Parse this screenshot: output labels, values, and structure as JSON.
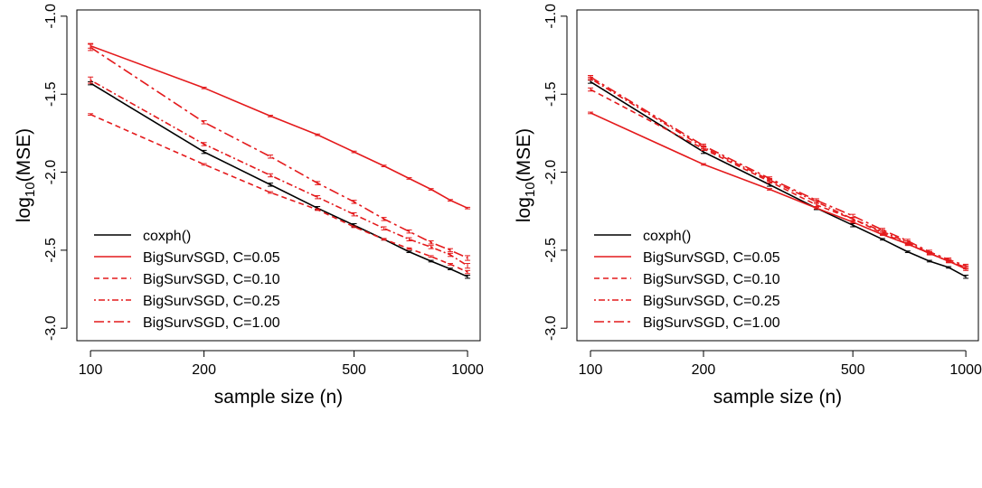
{
  "figure": {
    "background": "#ffffff"
  },
  "chart_data": [
    {
      "type": "line",
      "xlabel": "sample size (n)",
      "ylabel_base": "log",
      "ylabel_sub": "10",
      "ylabel_rest": "(MSE)",
      "x_scale": "log",
      "xlim": [
        92,
        1080
      ],
      "ylim": [
        -3.08,
        -0.96
      ],
      "x_ticks": [
        100,
        200,
        500,
        1000
      ],
      "x_tick_labels": [
        "100",
        "200",
        "500",
        "1000"
      ],
      "y_ticks": [
        -3.0,
        -2.5,
        -2.0,
        -1.5,
        -1.0
      ],
      "y_tick_labels": [
        "-3.0",
        "-2.5",
        "-2.0",
        "-1.5",
        "-1.0"
      ],
      "grid": false,
      "legend_position": "bottom-left",
      "x": [
        100,
        200,
        300,
        400,
        500,
        600,
        700,
        800,
        900,
        1000
      ],
      "series": [
        {
          "name": "coxph()",
          "color": "#000000",
          "dash": "solid",
          "values": [
            -1.43,
            -1.87,
            -2.08,
            -2.23,
            -2.34,
            -2.43,
            -2.51,
            -2.57,
            -2.62,
            -2.67
          ],
          "err": [
            0.01,
            0.01,
            0.01,
            0.01,
            0.01,
            0.005,
            0.005,
            0.005,
            0.005,
            0.01
          ]
        },
        {
          "name": "BigSurvSGD, C=0.05",
          "color": "#e41a1c",
          "dash": "solid",
          "values": [
            -1.19,
            -1.46,
            -1.64,
            -1.76,
            -1.87,
            -1.96,
            -2.04,
            -2.11,
            -2.18,
            -2.23
          ],
          "err": [
            0.015,
            0.005,
            0.005,
            0.005,
            0.005,
            0.005,
            0.005,
            0.005,
            0.005,
            0.005
          ]
        },
        {
          "name": "BigSurvSGD, C=0.10",
          "color": "#e41a1c",
          "dash": "dashed",
          "values": [
            -1.63,
            -1.95,
            -2.13,
            -2.24,
            -2.35,
            -2.43,
            -2.49,
            -2.54,
            -2.59,
            -2.64
          ],
          "err": [
            0.005,
            0.005,
            0.005,
            0.005,
            0.005,
            0.005,
            0.005,
            0.005,
            0.005,
            0.01
          ]
        },
        {
          "name": "BigSurvSGD, C=0.25",
          "color": "#e41a1c",
          "dash": "dotdash",
          "values": [
            -1.41,
            -1.82,
            -2.02,
            -2.16,
            -2.27,
            -2.36,
            -2.43,
            -2.48,
            -2.53,
            -2.6
          ],
          "err": [
            0.02,
            0.01,
            0.01,
            0.01,
            0.01,
            0.01,
            0.01,
            0.01,
            0.01,
            0.015
          ]
        },
        {
          "name": "BigSurvSGD, C=1.00",
          "color": "#e41a1c",
          "dash": "longdash",
          "values": [
            -1.2,
            -1.68,
            -1.9,
            -2.07,
            -2.19,
            -2.3,
            -2.38,
            -2.45,
            -2.5,
            -2.55
          ],
          "err": [
            0.02,
            0.01,
            0.01,
            0.01,
            0.01,
            0.01,
            0.01,
            0.01,
            0.01,
            0.015
          ]
        }
      ]
    },
    {
      "type": "line",
      "xlabel": "sample size (n)",
      "ylabel_base": "log",
      "ylabel_sub": "10",
      "ylabel_rest": "(MSE)",
      "x_scale": "log",
      "xlim": [
        92,
        1080
      ],
      "ylim": [
        -3.08,
        -0.96
      ],
      "x_ticks": [
        100,
        200,
        500,
        1000
      ],
      "x_tick_labels": [
        "100",
        "200",
        "500",
        "1000"
      ],
      "y_ticks": [
        -3.0,
        -2.5,
        -2.0,
        -1.5,
        -1.0
      ],
      "y_tick_labels": [
        "-3.0",
        "-2.5",
        "-2.0",
        "-1.5",
        "-1.0"
      ],
      "grid": false,
      "legend_position": "bottom-left",
      "x": [
        100,
        200,
        300,
        400,
        500,
        600,
        700,
        800,
        900,
        1000
      ],
      "series": [
        {
          "name": "coxph()",
          "color": "#000000",
          "dash": "solid",
          "values": [
            -1.42,
            -1.87,
            -2.08,
            -2.23,
            -2.34,
            -2.43,
            -2.51,
            -2.57,
            -2.61,
            -2.67
          ],
          "err": [
            0.01,
            0.01,
            0.01,
            0.01,
            0.01,
            0.005,
            0.005,
            0.005,
            0.005,
            0.01
          ]
        },
        {
          "name": "BigSurvSGD, C=0.05",
          "color": "#e41a1c",
          "dash": "solid",
          "values": [
            -1.62,
            -1.95,
            -2.11,
            -2.23,
            -2.32,
            -2.4,
            -2.46,
            -2.52,
            -2.57,
            -2.62
          ],
          "err": [
            0.005,
            0.005,
            0.005,
            0.005,
            0.005,
            0.005,
            0.005,
            0.005,
            0.005,
            0.01
          ]
        },
        {
          "name": "BigSurvSGD, C=0.10",
          "color": "#e41a1c",
          "dash": "dashed",
          "values": [
            -1.47,
            -1.85,
            -2.06,
            -2.21,
            -2.3,
            -2.39,
            -2.46,
            -2.52,
            -2.57,
            -2.61
          ],
          "err": [
            0.01,
            0.01,
            0.01,
            0.01,
            0.01,
            0.01,
            0.01,
            0.01,
            0.01,
            0.01
          ]
        },
        {
          "name": "BigSurvSGD, C=0.25",
          "color": "#e41a1c",
          "dash": "dotdash",
          "values": [
            -1.4,
            -1.84,
            -2.05,
            -2.19,
            -2.3,
            -2.38,
            -2.45,
            -2.52,
            -2.57,
            -2.61
          ],
          "err": [
            0.01,
            0.01,
            0.01,
            0.01,
            0.01,
            0.01,
            0.01,
            0.01,
            0.01,
            0.01
          ]
        },
        {
          "name": "BigSurvSGD, C=1.00",
          "color": "#e41a1c",
          "dash": "longdash",
          "values": [
            -1.39,
            -1.83,
            -2.04,
            -2.18,
            -2.28,
            -2.37,
            -2.44,
            -2.51,
            -2.56,
            -2.6
          ],
          "err": [
            0.01,
            0.01,
            0.01,
            0.01,
            0.01,
            0.01,
            0.01,
            0.01,
            0.01,
            0.01
          ]
        }
      ]
    }
  ]
}
